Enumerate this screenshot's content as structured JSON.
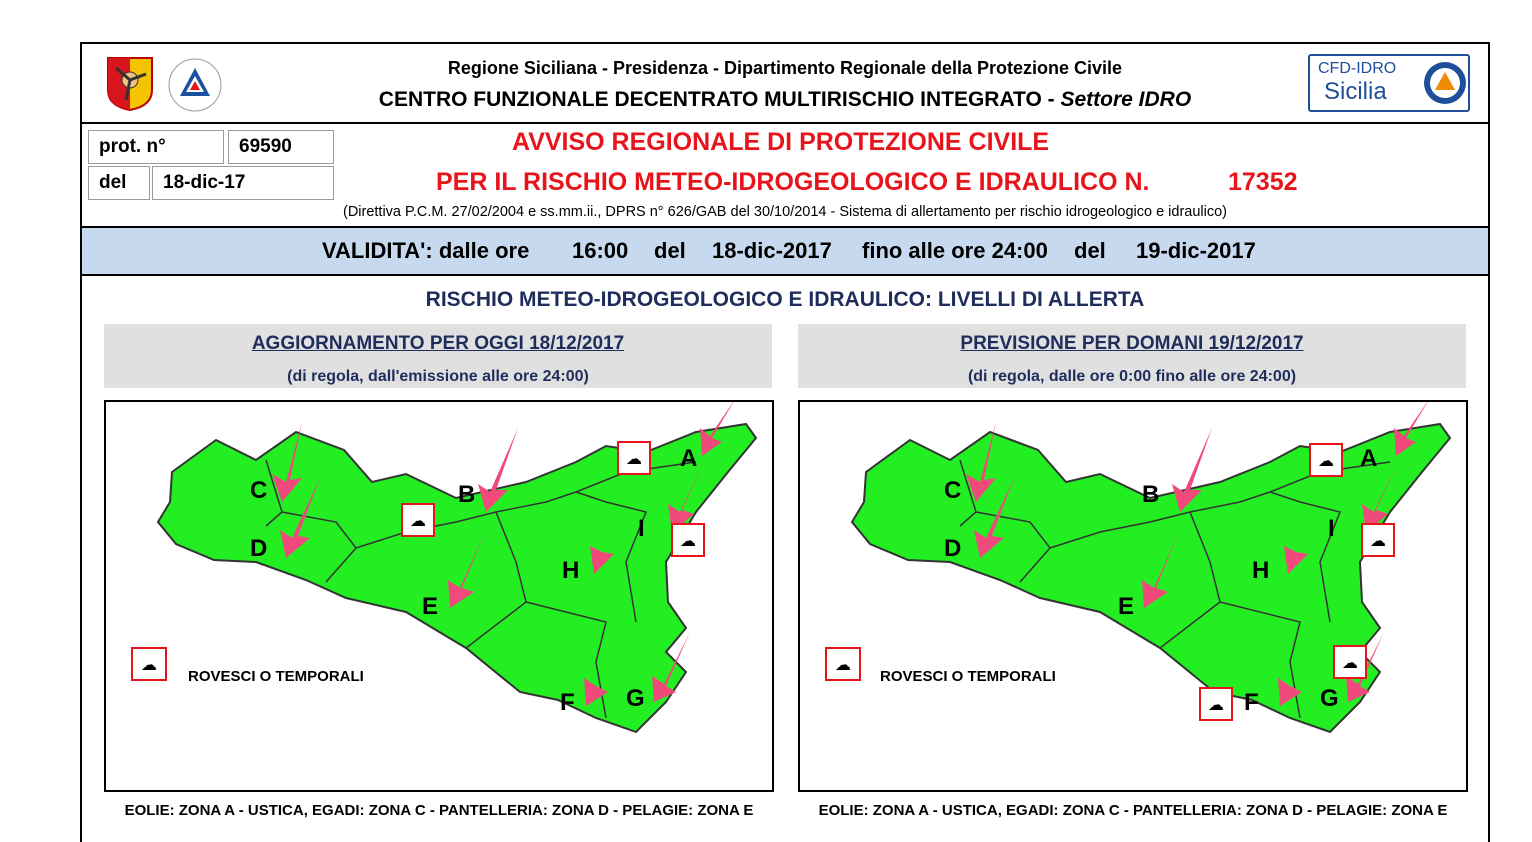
{
  "header": {
    "line1": "Regione Siciliana - Presidenza - Dipartimento Regionale della Protezione Civile",
    "line2": "CENTRO FUNZIONALE DECENTRATO MULTIRISCHIO INTEGRATO - ",
    "line2_italic": "Settore IDRO",
    "logo_right": {
      "top": "CFD-IDRO",
      "bottom": "Sicilia"
    }
  },
  "prot": {
    "label": "prot. n°",
    "value": "69590",
    "date_label": "del",
    "date_value": "18-dic-17"
  },
  "title": {
    "line1": "AVVISO REGIONALE DI PROTEZIONE CIVILE",
    "line2": "PER IL RISCHIO METEO-IDROGEOLOGICO E IDRAULICO N.",
    "number": "17352",
    "directive": "(Direttiva P.C.M. 27/02/2004 e ss.mm.ii., DPRS n° 626/GAB del 30/10/2014 - Sistema di allertamento per rischio idrogeologico e idraulico)"
  },
  "validity": {
    "label": "VALIDITA': dalle ore",
    "from_time": "16:00",
    "del1": "del",
    "from_date": "18-dic-2017",
    "until_label": "fino alle ore 24:00",
    "del2": "del",
    "to_date": "19-dic-2017"
  },
  "section_title": "RISCHIO METEO-IDROGEOLOGICO E IDRAULICO: LIVELLI DI ALLERTA",
  "panels": [
    {
      "title": "AGGIORNAMENTO PER OGGI 18/12/2017",
      "subtitle": "(di regola, dall'emissione alle ore 24:00)",
      "legend": "ROVESCI O TEMPORALI",
      "footer": "EOLIE: ZONA A - USTICA, EGADI: ZONA C - PANTELLERIA: ZONA D - PELAGIE: ZONA E"
    },
    {
      "title": "PREVISIONE PER DOMANI 19/12/2017",
      "subtitle": "(di regola, dalle ore 0:00 fino alle ore 24:00)",
      "legend": "ROVESCI O TEMPORALI",
      "footer": "EOLIE: ZONA A - USTICA, EGADI: ZONA C - PANTELLERIA: ZONA D - PELAGIE: ZONA E"
    }
  ],
  "zones": [
    "A",
    "B",
    "C",
    "D",
    "E",
    "F",
    "G",
    "H",
    "I"
  ],
  "colors": {
    "alert_green": "#22ee22",
    "arrow_pink": "#f04a7c",
    "title_red": "#e8141c",
    "band_blue": "#c7d9ee"
  },
  "icons": [
    "sicily-region-logo",
    "civil-protection-logo",
    "cfd-idro-logo",
    "thunderstorm-icon",
    "warning-arrow-icon"
  ]
}
